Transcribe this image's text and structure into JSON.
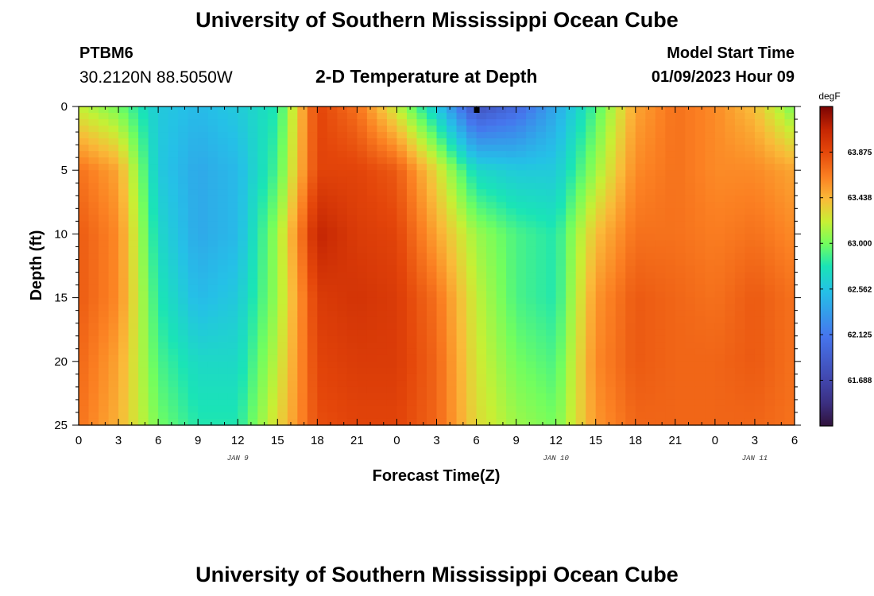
{
  "header": {
    "title": "University of Southern Mississippi Ocean Cube",
    "station": "PTBM6",
    "coords": "30.2120N  88.5050W",
    "subtitle": "2-D Temperature at Depth",
    "model_start_label": "Model Start Time",
    "model_start_value": "01/09/2023 Hour 09"
  },
  "footer": {
    "title": "University of Southern Mississippi Ocean Cube"
  },
  "chart_data": {
    "type": "heatmap",
    "title": "2-D Temperature at Depth",
    "xlabel": "Forecast Time(Z)",
    "ylabel": "Depth (ft)",
    "x_range_hours": [
      0,
      54
    ],
    "y_range_ft": [
      0,
      25
    ],
    "x_ticks": [
      "0",
      "3",
      "6",
      "9",
      "12",
      "15",
      "18",
      "21",
      "0",
      "3",
      "6",
      "9",
      "12",
      "15",
      "18",
      "21",
      "0",
      "3",
      "6"
    ],
    "y_ticks": [
      "0",
      "5",
      "10",
      "15",
      "20",
      "25"
    ],
    "date_labels": [
      {
        "text": "JAN 9",
        "hour": 12
      },
      {
        "text": "JAN 10",
        "hour": 36
      },
      {
        "text": "JAN 11",
        "hour": 51
      }
    ],
    "colorbar": {
      "unit": "degF",
      "min": 61.25,
      "max": 64.312,
      "ticks": [
        "63.875",
        "63.438",
        "63.000",
        "62.562",
        "62.125",
        "61.688"
      ],
      "tick_values": [
        63.875,
        63.438,
        63.0,
        62.562,
        62.125,
        61.688
      ]
    },
    "grid_depths_ft": [
      0,
      5,
      10,
      15,
      20,
      25
    ],
    "grid_hours": [
      0,
      3,
      6,
      9,
      12,
      15,
      18,
      21,
      24,
      27,
      30,
      33,
      36,
      39,
      42,
      45,
      48,
      51,
      54
    ],
    "temperature_degF": [
      [
        63.2,
        63.0,
        62.6,
        62.5,
        62.6,
        62.8,
        63.9,
        63.7,
        63.2,
        62.6,
        61.8,
        62.0,
        62.4,
        62.9,
        63.5,
        63.7,
        63.6,
        63.4,
        63.0
      ],
      [
        63.7,
        63.5,
        62.6,
        62.4,
        62.5,
        62.9,
        63.9,
        63.9,
        63.8,
        63.3,
        62.7,
        62.6,
        62.6,
        63.1,
        63.6,
        63.7,
        63.6,
        63.6,
        63.5
      ],
      [
        63.8,
        63.6,
        62.7,
        62.4,
        62.5,
        63.1,
        64.1,
        63.95,
        63.9,
        63.5,
        63.1,
        62.9,
        62.8,
        63.4,
        63.7,
        63.7,
        63.65,
        63.7,
        63.6
      ],
      [
        63.8,
        63.6,
        62.8,
        62.5,
        62.6,
        63.1,
        63.95,
        64.0,
        63.95,
        63.7,
        63.2,
        62.9,
        62.8,
        63.55,
        63.8,
        63.75,
        63.7,
        63.8,
        63.7
      ],
      [
        63.75,
        63.5,
        62.9,
        62.7,
        62.7,
        63.2,
        63.9,
        63.95,
        63.95,
        63.75,
        63.25,
        63.0,
        62.9,
        63.6,
        63.8,
        63.75,
        63.75,
        63.8,
        63.7
      ],
      [
        63.7,
        63.45,
        63.0,
        62.8,
        62.8,
        63.3,
        63.85,
        63.9,
        63.9,
        63.75,
        63.3,
        63.1,
        63.0,
        63.55,
        63.75,
        63.75,
        63.75,
        63.75,
        63.7
      ]
    ]
  }
}
